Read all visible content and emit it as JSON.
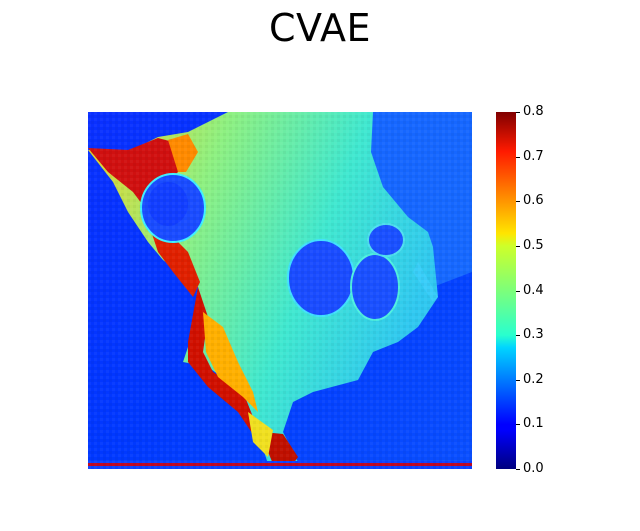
{
  "title": "CVAE",
  "colorbar": {
    "min": 0.0,
    "max": 0.8,
    "colormap": "jet",
    "ticks": [
      "0.0",
      "0.1",
      "0.2",
      "0.3",
      "0.4",
      "0.5",
      "0.6",
      "0.7",
      "0.8"
    ]
  },
  "image": {
    "description_colors": {
      "background_low": "#0a1fff",
      "cell_body": "#5ff0b0",
      "cell_edge_high": "#c80000",
      "nuclei": "#2060ff"
    }
  }
}
